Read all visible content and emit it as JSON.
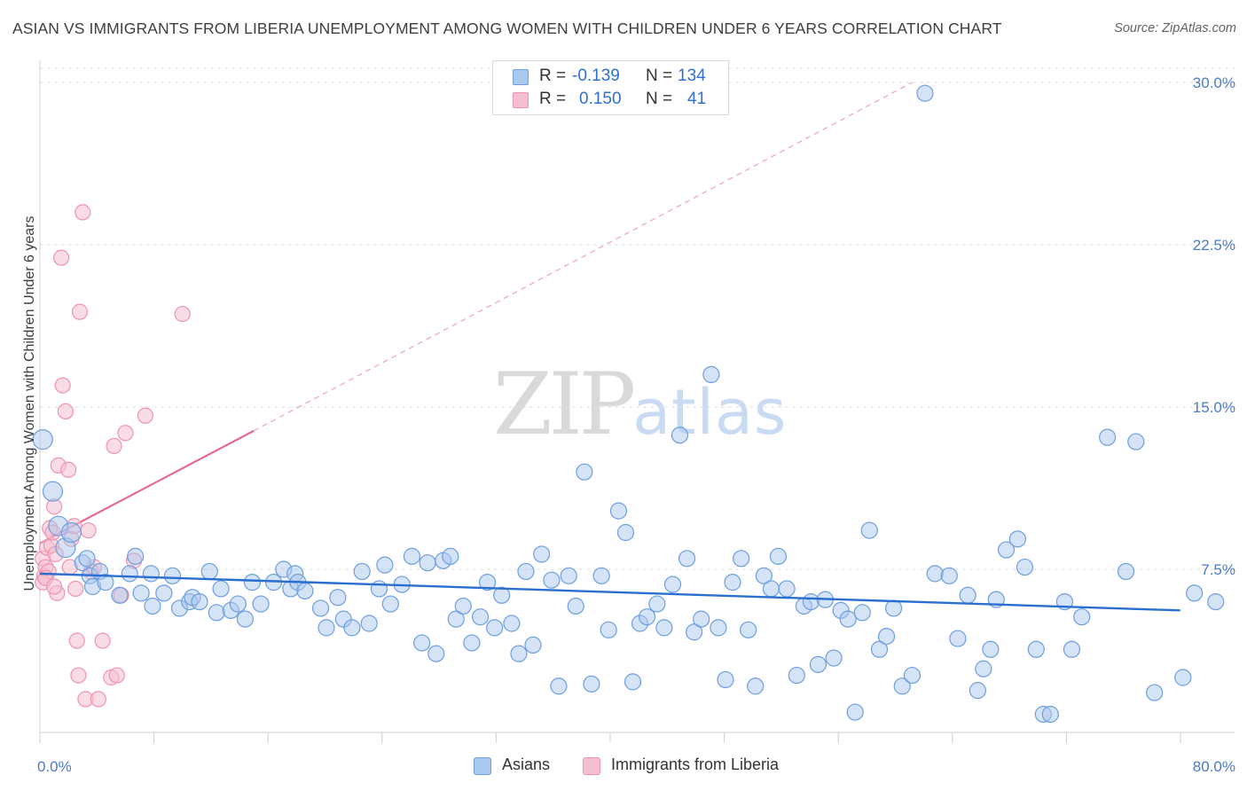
{
  "title": "ASIAN VS IMMIGRANTS FROM LIBERIA UNEMPLOYMENT AMONG WOMEN WITH CHILDREN UNDER 6 YEARS CORRELATION CHART",
  "source": "Source: ZipAtlas.com",
  "watermark": {
    "zip": "ZIP",
    "atlas": "atlas"
  },
  "legend_top": {
    "rows": [
      {
        "r_label": "R =",
        "r_value": "-0.139",
        "n_label": "N =",
        "n_value": "134"
      },
      {
        "r_label": "R =",
        "r_value": "0.150",
        "n_label": "N =",
        "n_value": "41"
      }
    ]
  },
  "legend_bottom": {
    "asians": "Asians",
    "liberia": "Immigrants from Liberia"
  },
  "colors": {
    "asian_fill": "#a9c8ee",
    "asian_stroke": "#6d9ee0",
    "asian_line": "#2a6fcf",
    "liberia_fill": "#f6bfd0",
    "liberia_stroke": "#ef93b0",
    "liberia_line": "#e56a93",
    "tick_text": "#4a7cc4",
    "grid": "#dcdcdc"
  },
  "chart_data": {
    "type": "scatter",
    "title": "ASIAN VS IMMIGRANTS FROM LIBERIA UNEMPLOYMENT AMONG WOMEN WITH CHILDREN UNDER 6 YEARS CORRELATION CHART",
    "xlabel": "",
    "ylabel": "Unemployment Among Women with Children Under 6 years",
    "xlim": [
      0,
      80
    ],
    "ylim": [
      0,
      30
    ],
    "x_tick_labels": [
      "0.0%",
      "80.0%"
    ],
    "y_ticks": [
      7.5,
      15.0,
      22.5,
      30.0
    ],
    "y_tick_labels": [
      "7.5%",
      "15.0%",
      "22.5%",
      "30.0%"
    ],
    "grid": true,
    "legend_position": "top-center",
    "series": [
      {
        "name": "Asians",
        "R": -0.139,
        "N": 134,
        "trend": {
          "x": [
            0,
            80
          ],
          "y": [
            7.3,
            5.6
          ]
        },
        "points": [
          [
            0.2,
            13.5
          ],
          [
            0.9,
            11.1
          ],
          [
            1.3,
            9.5
          ],
          [
            1.8,
            8.5
          ],
          [
            2.2,
            9.2
          ],
          [
            3.0,
            7.8
          ],
          [
            3.3,
            8.0
          ],
          [
            3.5,
            7.2
          ],
          [
            3.7,
            6.7
          ],
          [
            4.2,
            7.4
          ],
          [
            4.6,
            6.9
          ],
          [
            5.6,
            6.3
          ],
          [
            6.3,
            7.3
          ],
          [
            6.7,
            8.1
          ],
          [
            7.1,
            6.4
          ],
          [
            7.8,
            7.3
          ],
          [
            7.9,
            5.8
          ],
          [
            8.7,
            6.4
          ],
          [
            9.3,
            7.2
          ],
          [
            9.8,
            5.7
          ],
          [
            10.5,
            6.0
          ],
          [
            10.7,
            6.2
          ],
          [
            11.2,
            6.0
          ],
          [
            11.9,
            7.4
          ],
          [
            12.4,
            5.5
          ],
          [
            12.7,
            6.6
          ],
          [
            13.4,
            5.6
          ],
          [
            13.9,
            5.9
          ],
          [
            14.4,
            5.2
          ],
          [
            14.9,
            6.9
          ],
          [
            15.5,
            5.9
          ],
          [
            16.4,
            6.9
          ],
          [
            17.1,
            7.5
          ],
          [
            17.6,
            6.6
          ],
          [
            17.9,
            7.3
          ],
          [
            18.1,
            6.9
          ],
          [
            18.6,
            6.5
          ],
          [
            19.7,
            5.7
          ],
          [
            20.1,
            4.8
          ],
          [
            20.9,
            6.2
          ],
          [
            21.3,
            5.2
          ],
          [
            21.9,
            4.8
          ],
          [
            22.6,
            7.4
          ],
          [
            23.1,
            5.0
          ],
          [
            23.8,
            6.6
          ],
          [
            24.2,
            7.7
          ],
          [
            24.6,
            5.9
          ],
          [
            25.4,
            6.8
          ],
          [
            26.1,
            8.1
          ],
          [
            26.8,
            4.1
          ],
          [
            27.2,
            7.8
          ],
          [
            27.8,
            3.6
          ],
          [
            28.3,
            7.9
          ],
          [
            28.8,
            8.1
          ],
          [
            29.2,
            5.2
          ],
          [
            29.7,
            5.8
          ],
          [
            30.3,
            4.1
          ],
          [
            30.9,
            5.3
          ],
          [
            31.4,
            6.9
          ],
          [
            31.9,
            4.8
          ],
          [
            32.4,
            6.3
          ],
          [
            33.1,
            5.0
          ],
          [
            33.6,
            3.6
          ],
          [
            34.1,
            7.4
          ],
          [
            34.6,
            4.0
          ],
          [
            35.2,
            8.2
          ],
          [
            35.9,
            7.0
          ],
          [
            36.4,
            2.1
          ],
          [
            37.1,
            7.2
          ],
          [
            37.6,
            5.8
          ],
          [
            38.2,
            12.0
          ],
          [
            38.7,
            2.2
          ],
          [
            39.4,
            7.2
          ],
          [
            39.9,
            4.7
          ],
          [
            40.6,
            10.2
          ],
          [
            41.1,
            9.2
          ],
          [
            41.6,
            2.3
          ],
          [
            42.1,
            5.0
          ],
          [
            42.6,
            5.3
          ],
          [
            43.3,
            5.9
          ],
          [
            43.8,
            4.8
          ],
          [
            44.4,
            6.8
          ],
          [
            44.9,
            13.7
          ],
          [
            45.4,
            8.0
          ],
          [
            45.9,
            4.6
          ],
          [
            46.4,
            5.2
          ],
          [
            47.1,
            16.5
          ],
          [
            47.6,
            4.8
          ],
          [
            48.1,
            2.4
          ],
          [
            48.6,
            6.9
          ],
          [
            49.2,
            8.0
          ],
          [
            49.7,
            4.7
          ],
          [
            50.2,
            2.1
          ],
          [
            50.8,
            7.2
          ],
          [
            51.3,
            6.6
          ],
          [
            51.8,
            8.1
          ],
          [
            52.4,
            6.6
          ],
          [
            53.1,
            2.6
          ],
          [
            53.6,
            5.8
          ],
          [
            54.1,
            6.0
          ],
          [
            54.6,
            3.1
          ],
          [
            55.1,
            6.1
          ],
          [
            55.7,
            3.4
          ],
          [
            56.2,
            5.6
          ],
          [
            56.7,
            5.2
          ],
          [
            57.2,
            0.9
          ],
          [
            57.7,
            5.5
          ],
          [
            58.2,
            9.3
          ],
          [
            58.9,
            3.8
          ],
          [
            59.4,
            4.4
          ],
          [
            59.9,
            5.7
          ],
          [
            60.5,
            2.1
          ],
          [
            61.2,
            2.6
          ],
          [
            62.1,
            29.5
          ],
          [
            62.8,
            7.3
          ],
          [
            63.8,
            7.2
          ],
          [
            64.4,
            4.3
          ],
          [
            65.1,
            6.3
          ],
          [
            65.8,
            1.9
          ],
          [
            66.2,
            2.9
          ],
          [
            66.7,
            3.8
          ],
          [
            67.1,
            6.1
          ],
          [
            67.8,
            8.4
          ],
          [
            68.6,
            8.9
          ],
          [
            69.1,
            7.6
          ],
          [
            69.9,
            3.8
          ],
          [
            70.4,
            0.8
          ],
          [
            70.9,
            0.8
          ],
          [
            71.9,
            6.0
          ],
          [
            72.4,
            3.8
          ],
          [
            73.1,
            5.3
          ],
          [
            74.9,
            13.6
          ],
          [
            76.2,
            7.4
          ],
          [
            76.9,
            13.4
          ],
          [
            78.2,
            1.8
          ],
          [
            80.2,
            2.5
          ],
          [
            81.0,
            6.4
          ],
          [
            82.5,
            6.0
          ]
        ]
      },
      {
        "name": "Immigrants from Liberia",
        "R": 0.15,
        "N": 41,
        "trend_solid": {
          "x": [
            0,
            15.0
          ],
          "y": [
            8.7,
            13.9
          ]
        },
        "trend_dashed": {
          "x": [
            15.0,
            61.2
          ],
          "y": [
            13.9,
            30.0
          ]
        },
        "points": [
          [
            0.2,
            8.0
          ],
          [
            0.3,
            7.2
          ],
          [
            0.4,
            7.6
          ],
          [
            0.5,
            8.5
          ],
          [
            0.6,
            7.4
          ],
          [
            0.7,
            9.4
          ],
          [
            0.8,
            8.6
          ],
          [
            0.9,
            9.2
          ],
          [
            1.0,
            10.4
          ],
          [
            1.1,
            8.2
          ],
          [
            1.2,
            6.4
          ],
          [
            1.3,
            12.3
          ],
          [
            1.5,
            21.9
          ],
          [
            1.6,
            16.0
          ],
          [
            1.8,
            14.8
          ],
          [
            2.0,
            12.1
          ],
          [
            2.1,
            7.6
          ],
          [
            2.2,
            8.9
          ],
          [
            2.4,
            9.5
          ],
          [
            2.5,
            6.6
          ],
          [
            2.6,
            4.2
          ],
          [
            2.7,
            2.6
          ],
          [
            2.8,
            19.4
          ],
          [
            3.0,
            24.0
          ],
          [
            3.2,
            1.5
          ],
          [
            3.4,
            9.3
          ],
          [
            3.6,
            7.4
          ],
          [
            3.8,
            7.6
          ],
          [
            4.1,
            1.5
          ],
          [
            4.4,
            4.2
          ],
          [
            5.0,
            2.5
          ],
          [
            5.2,
            13.2
          ],
          [
            5.4,
            2.6
          ],
          [
            5.7,
            6.3
          ],
          [
            6.0,
            13.8
          ],
          [
            6.6,
            7.9
          ],
          [
            7.4,
            14.6
          ],
          [
            10.0,
            19.3
          ],
          [
            0.2,
            6.9
          ],
          [
            0.4,
            7.1
          ],
          [
            1.0,
            6.7
          ]
        ]
      }
    ]
  }
}
